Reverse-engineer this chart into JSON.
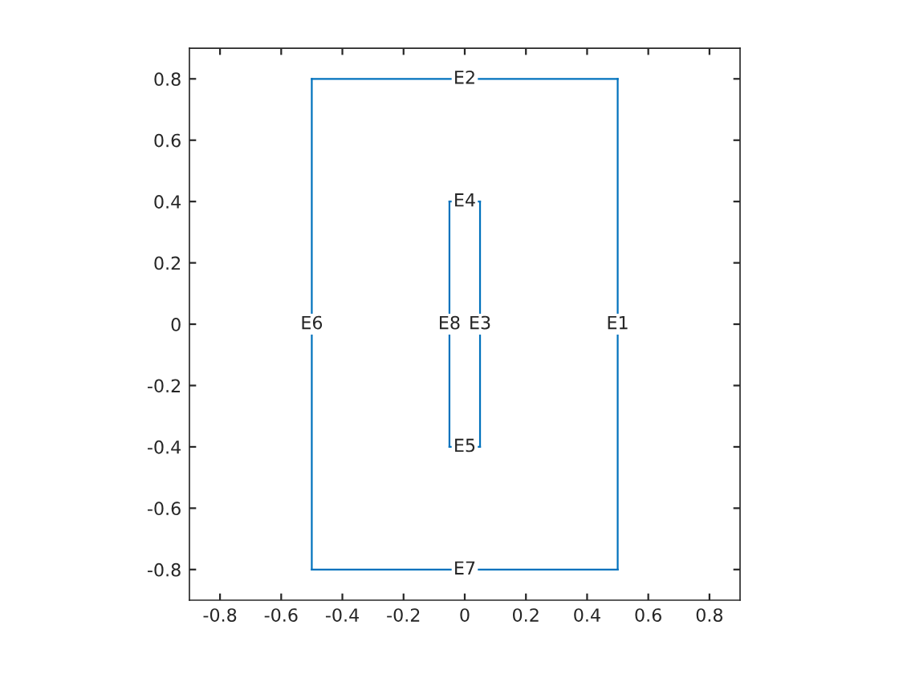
{
  "chart_data": {
    "type": "line",
    "series": [
      {
        "name": "E1",
        "color": "#0072bd",
        "x": [
          0.5,
          0.5
        ],
        "values": [
          -0.8,
          0.8
        ]
      },
      {
        "name": "E2",
        "color": "#0072bd",
        "x": [
          -0.5,
          0.5
        ],
        "values": [
          0.8,
          0.8
        ]
      },
      {
        "name": "E3",
        "color": "#0072bd",
        "x": [
          0.05,
          0.05
        ],
        "values": [
          -0.4,
          0.4
        ]
      },
      {
        "name": "E4",
        "color": "#0072bd",
        "x": [
          -0.05,
          0.05
        ],
        "values": [
          0.4,
          0.4
        ]
      },
      {
        "name": "E5",
        "color": "#0072bd",
        "x": [
          -0.05,
          0.05
        ],
        "values": [
          -0.4,
          -0.4
        ]
      },
      {
        "name": "E6",
        "color": "#0072bd",
        "x": [
          -0.5,
          -0.5
        ],
        "values": [
          -0.8,
          0.8
        ]
      },
      {
        "name": "E7",
        "color": "#0072bd",
        "x": [
          -0.5,
          0.5
        ],
        "values": [
          -0.8,
          -0.8
        ]
      },
      {
        "name": "E8",
        "color": "#0072bd",
        "x": [
          -0.05,
          -0.05
        ],
        "values": [
          -0.4,
          0.4
        ]
      }
    ],
    "xlim": [
      -0.9,
      0.9
    ],
    "ylim": [
      -0.9,
      0.9
    ],
    "xticks": [
      -0.8,
      -0.6,
      -0.4,
      -0.2,
      0,
      0.2,
      0.4,
      0.6,
      0.8
    ],
    "yticks": [
      -0.8,
      -0.6,
      -0.4,
      -0.2,
      0,
      0.2,
      0.4,
      0.6,
      0.8
    ],
    "grid": false,
    "marker": "none",
    "line_style": "solid"
  }
}
